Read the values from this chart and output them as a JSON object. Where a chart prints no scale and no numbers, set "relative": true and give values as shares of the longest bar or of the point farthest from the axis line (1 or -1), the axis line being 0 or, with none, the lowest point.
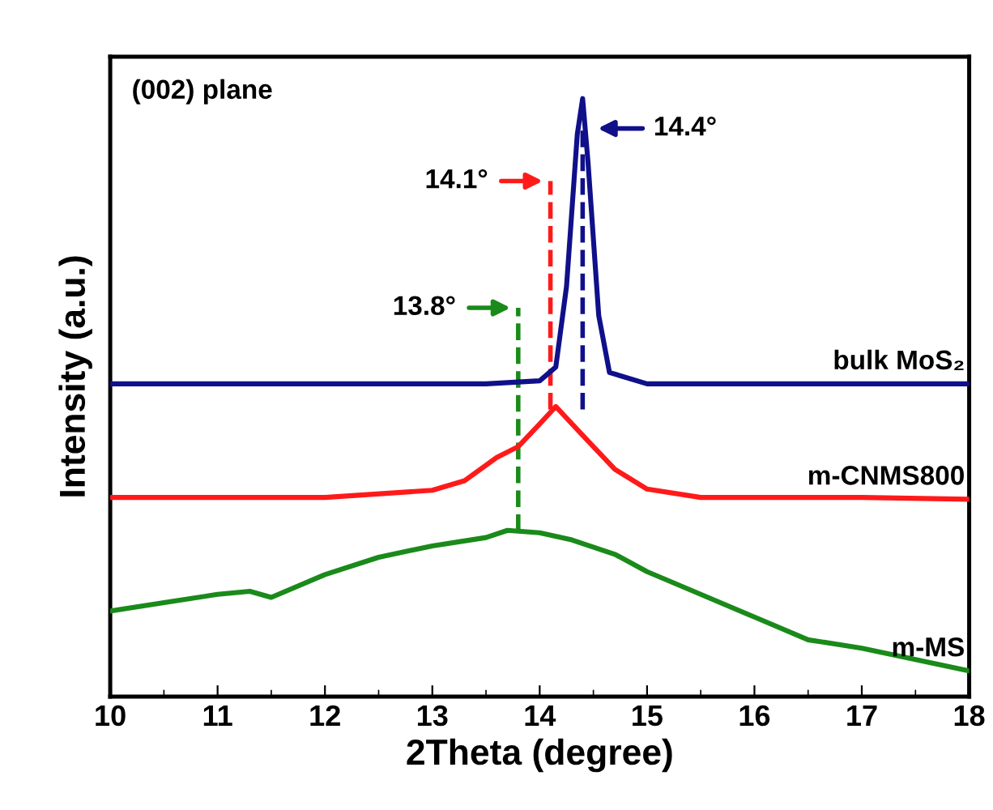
{
  "chart_data": {
    "type": "line",
    "relative": true,
    "xlabel": "2Theta (degree)",
    "ylabel": "Intensity (a.u.)",
    "xlim": [
      10,
      18
    ],
    "xticks": [
      10,
      11,
      12,
      13,
      14,
      15,
      16,
      17,
      18
    ],
    "tick_labels": "x",
    "grid": false,
    "legend": false,
    "line_style": "solid",
    "marker": "none",
    "annotations": [
      "(002) plane"
    ],
    "ref_lines": [
      {
        "axis": "x",
        "value": 13.8,
        "label": "13.8°",
        "color": "#1a8a1a",
        "line_style": "dashed"
      },
      {
        "axis": "x",
        "value": 14.1,
        "label": "14.1°",
        "color": "#ff1a1a",
        "line_style": "dashed"
      },
      {
        "axis": "x",
        "value": 14.4,
        "label": "14.4°",
        "color": "#10108a",
        "line_style": "dashed"
      }
    ],
    "series": [
      {
        "name": "bulk MoS₂",
        "color": "#10108a",
        "x": [
          10,
          11,
          12,
          13,
          13.5,
          14.0,
          14.15,
          14.25,
          14.35,
          14.4,
          14.45,
          14.55,
          14.65,
          15,
          16,
          17,
          18
        ],
        "values": [
          0.523,
          0.523,
          0.523,
          0.523,
          0.523,
          0.528,
          0.551,
          0.686,
          0.94,
          1.0,
          0.894,
          0.637,
          0.542,
          0.523,
          0.523,
          0.523,
          0.523
        ]
      },
      {
        "name": "m-CNMS800",
        "color": "#ff1a1a",
        "x": [
          10,
          11,
          12,
          13,
          13.3,
          13.6,
          13.8,
          14.0,
          14.15,
          14.4,
          14.7,
          15.0,
          15.5,
          16,
          17,
          18
        ],
        "values": [
          0.333,
          0.333,
          0.333,
          0.345,
          0.361,
          0.4,
          0.418,
          0.456,
          0.485,
          0.437,
          0.38,
          0.347,
          0.333,
          0.333,
          0.333,
          0.33
        ]
      },
      {
        "name": "m-MS",
        "color": "#1a8a1a",
        "x": [
          10,
          10.5,
          11.0,
          11.3,
          11.5,
          12.0,
          12.5,
          13.0,
          13.5,
          13.7,
          14.0,
          14.3,
          14.7,
          15.0,
          15.5,
          16.0,
          16.5,
          17.0,
          17.5,
          18.0
        ],
        "values": [
          0.143,
          0.157,
          0.171,
          0.176,
          0.166,
          0.204,
          0.233,
          0.252,
          0.266,
          0.278,
          0.274,
          0.262,
          0.238,
          0.209,
          0.171,
          0.133,
          0.095,
          0.081,
          0.062,
          0.043
        ]
      }
    ]
  }
}
